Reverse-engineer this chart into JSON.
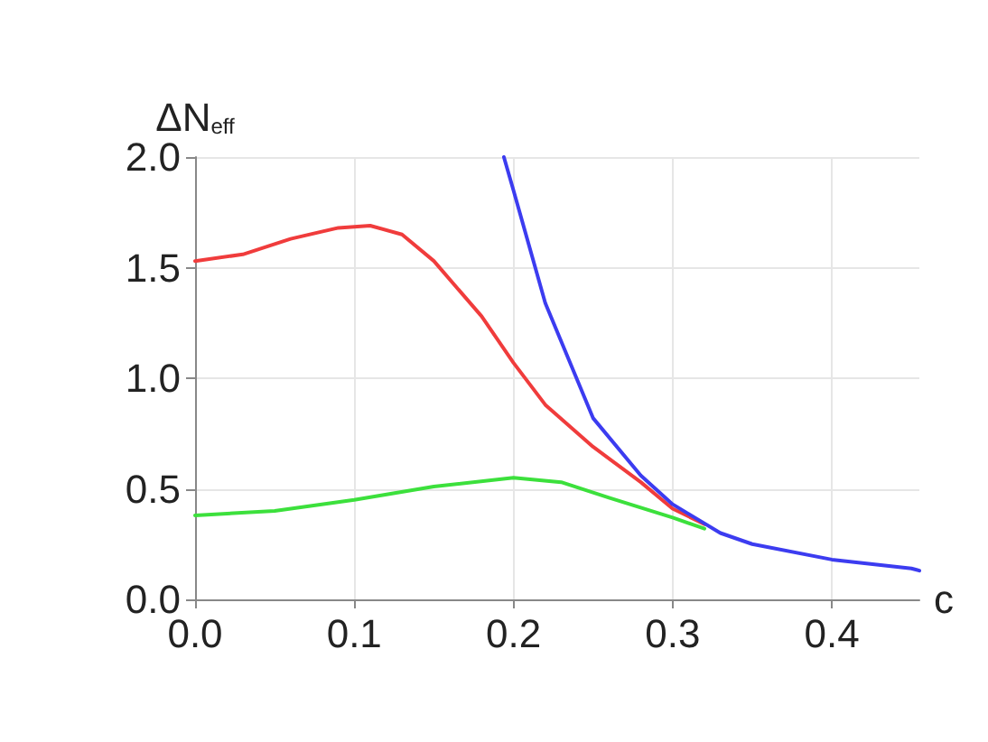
{
  "chart_data": {
    "type": "line",
    "xlabel": "c",
    "ylabel": "ΔN$_{eff}$",
    "xlim": [
      0,
      0.455
    ],
    "ylim": [
      0,
      2
    ],
    "xticks": [
      {
        "value": 0,
        "label": "0.0"
      },
      {
        "value": 0.1,
        "label": "0.1"
      },
      {
        "value": 0.2,
        "label": "0.2"
      },
      {
        "value": 0.3,
        "label": "0.3"
      },
      {
        "value": 0.4,
        "label": "0.4"
      }
    ],
    "yticks": [
      {
        "value": 0,
        "label": "0.0"
      },
      {
        "value": 0.5,
        "label": "0.5"
      },
      {
        "value": 1,
        "label": "1.0"
      },
      {
        "value": 1.5,
        "label": "1.5"
      },
      {
        "value": 2,
        "label": "2.0"
      }
    ],
    "grid": true,
    "marker": "none",
    "line_style": "solid",
    "series": [
      {
        "color": "#3ce03c",
        "x": [
          0,
          0.05,
          0.1,
          0.15,
          0.2,
          0.23,
          0.26,
          0.3,
          0.32
        ],
        "values": [
          0.38,
          0.4,
          0.45,
          0.51,
          0.55,
          0.53,
          0.46,
          0.37,
          0.32
        ]
      },
      {
        "color": "#f03c3c",
        "x": [
          0,
          0.03,
          0.06,
          0.09,
          0.11,
          0.13,
          0.15,
          0.18,
          0.2,
          0.22,
          0.25,
          0.28,
          0.3,
          0.32
        ],
        "values": [
          1.53,
          1.56,
          1.63,
          1.68,
          1.69,
          1.65,
          1.53,
          1.28,
          1.07,
          0.88,
          0.69,
          0.53,
          0.41,
          0.34
        ]
      },
      {
        "color": "#3c3cf0",
        "x": [
          0.194,
          0.2,
          0.22,
          0.25,
          0.28,
          0.3,
          0.33,
          0.35,
          0.4,
          0.45,
          0.455
        ],
        "values": [
          2.0,
          1.85,
          1.34,
          0.82,
          0.56,
          0.43,
          0.3,
          0.25,
          0.18,
          0.14,
          0.13
        ]
      }
    ]
  }
}
